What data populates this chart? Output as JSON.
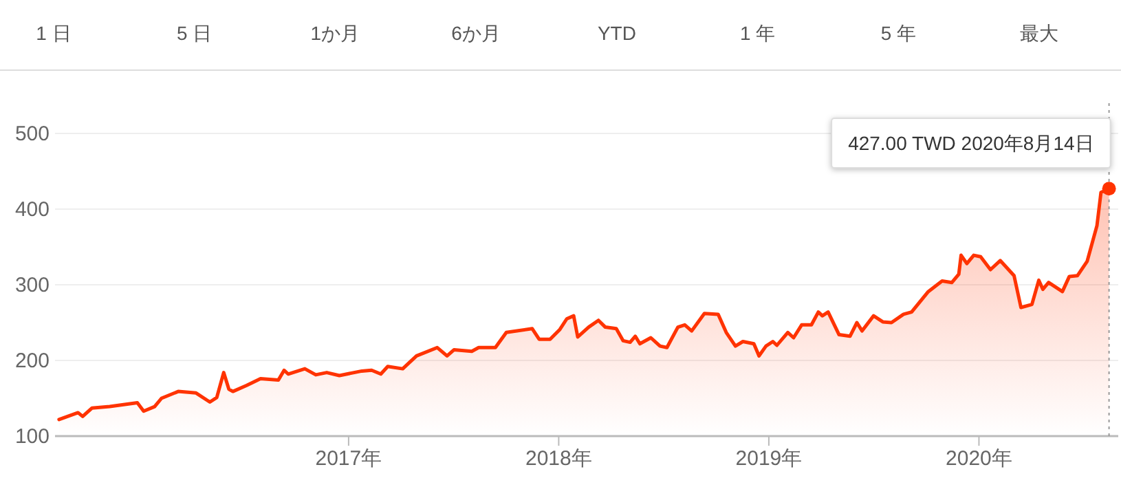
{
  "chart_data": {
    "type": "area",
    "annotations": [
      "1 日",
      "5 日",
      "1か月",
      "6か月",
      "YTD",
      "1 年",
      "5 年",
      "最大",
      {
        "text": "427.00 TWD  2020年8月14日",
        "x": "2020-08-14",
        "y": 427
      }
    ],
    "x": [
      "2015-08-17",
      "2015-09-19",
      "2015-09-27",
      "2015-10-13",
      "2015-11-13",
      "2015-12-31",
      "2016-01-11",
      "2016-01-30",
      "2016-02-11",
      "2016-03-11",
      "2016-04-11",
      "2016-05-05",
      "2016-05-17",
      "2016-05-29",
      "2016-06-07",
      "2016-06-14",
      "2016-07-08",
      "2016-08-01",
      "2016-09-01",
      "2016-09-11",
      "2016-09-18",
      "2016-10-17",
      "2016-11-05",
      "2016-11-24",
      "2016-12-16",
      "2017-01-24",
      "2017-02-10",
      "2017-02-26",
      "2017-03-10",
      "2017-04-05",
      "2017-04-29",
      "2017-06-04",
      "2017-06-21",
      "2017-07-03",
      "2017-08-03",
      "2017-08-15",
      "2017-09-13",
      "2017-10-02",
      "2017-11-16",
      "2017-11-28",
      "2017-12-17",
      "2018-01-03",
      "2018-01-15",
      "2018-01-27",
      "2018-02-03",
      "2018-02-22",
      "2018-03-11",
      "2018-03-23",
      "2018-04-11",
      "2018-04-23",
      "2018-05-05",
      "2018-05-14",
      "2018-05-22",
      "2018-06-10",
      "2018-06-26",
      "2018-07-08",
      "2018-07-27",
      "2018-08-08",
      "2018-08-20",
      "2018-09-11",
      "2018-10-05",
      "2018-10-19",
      "2018-11-04",
      "2018-11-17",
      "2018-12-06",
      "2018-12-15",
      "2018-12-27",
      "2019-01-08",
      "2019-01-15",
      "2019-02-03",
      "2019-02-13",
      "2019-02-27",
      "2019-03-16",
      "2019-03-28",
      "2019-04-04",
      "2019-04-14",
      "2019-05-03",
      "2019-05-22",
      "2019-06-03",
      "2019-06-12",
      "2019-07-02",
      "2019-07-18",
      "2019-08-02",
      "2019-08-23",
      "2019-09-06",
      "2019-10-05",
      "2019-10-29",
      "2019-11-15",
      "2019-11-27",
      "2019-12-01",
      "2019-12-11",
      "2019-12-23",
      "2020-01-04",
      "2020-01-21",
      "2020-02-07",
      "2020-03-02",
      "2020-03-14",
      "2020-04-02",
      "2020-04-14",
      "2020-04-21",
      "2020-05-01",
      "2020-05-25",
      "2020-06-06",
      "2020-06-20",
      "2020-07-07",
      "2020-07-24",
      "2020-07-31",
      "2020-08-14"
    ],
    "series": [
      {
        "color": "#ff3300",
        "values": [
          122,
          131,
          126,
          137,
          139,
          144,
          133,
          139,
          150,
          159,
          157,
          145,
          151,
          184,
          162,
          159,
          167,
          176,
          174,
          187,
          182,
          189,
          181,
          184,
          180,
          186,
          187,
          182,
          192,
          189,
          206,
          217,
          206,
          214,
          212,
          217,
          217,
          237,
          242,
          228,
          228,
          241,
          255,
          259,
          231,
          244,
          253,
          244,
          242,
          226,
          224,
          232,
          222,
          230,
          219,
          217,
          244,
          247,
          239,
          262,
          261,
          237,
          219,
          225,
          222,
          206,
          219,
          225,
          220,
          237,
          230,
          247,
          247,
          264,
          259,
          264,
          234,
          232,
          250,
          239,
          259,
          251,
          250,
          261,
          264,
          291,
          305,
          303,
          314,
          339,
          328,
          339,
          337,
          320,
          332,
          312,
          270,
          274,
          306,
          294,
          303,
          291,
          311,
          312,
          331,
          378,
          422,
          427
        ]
      }
    ],
    "xlim": [
      "2015-08-10",
      "2020-08-30"
    ],
    "xticks": [
      {
        "value": "2017-01-01",
        "label": "2017年"
      },
      {
        "value": "2018-01-01",
        "label": "2018年"
      },
      {
        "value": "2019-01-01",
        "label": "2019年"
      },
      {
        "value": "2020-01-01",
        "label": "2020年"
      }
    ],
    "ylim": [
      100,
      540
    ],
    "yticks": [
      100,
      200,
      300,
      400,
      500
    ],
    "grid": "y",
    "ref_lines": [
      {
        "axis": "x",
        "value": "2020-08-14",
        "color": "#999999",
        "line_style": "dotted"
      }
    ]
  }
}
